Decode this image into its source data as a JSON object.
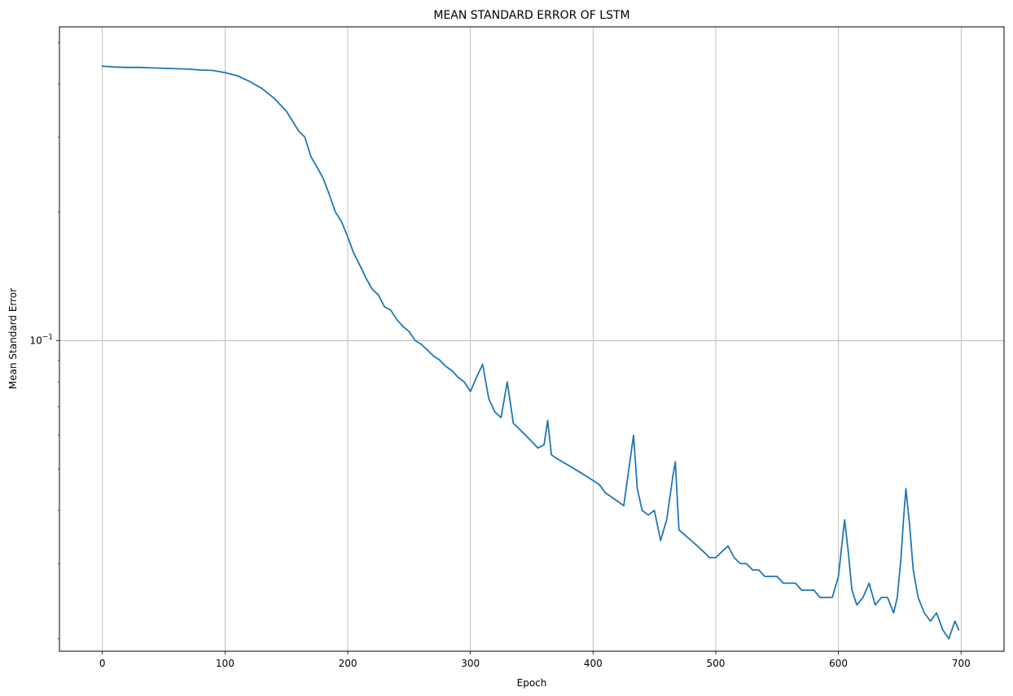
{
  "chart_data": {
    "type": "line",
    "title": "MEAN STANDARD ERROR OF LSTM",
    "xlabel": "Epoch",
    "ylabel": "Mean Standard Error",
    "xscale": "linear",
    "yscale": "log",
    "xlim": [
      -35,
      735
    ],
    "ylim": [
      0.0187,
      0.544
    ],
    "grid": true,
    "legend": "none",
    "line_color": "#1f77b4",
    "x_ticks": [
      "0",
      "100",
      "200",
      "300",
      "400",
      "500",
      "600",
      "700"
    ],
    "y_tick_label": {
      "base": "10",
      "exponent": "−1"
    },
    "series": [
      {
        "x": [
          0,
          10,
          20,
          30,
          40,
          50,
          60,
          70,
          80,
          90,
          100,
          110,
          120,
          130,
          140,
          150,
          160,
          165,
          170,
          175,
          180,
          185,
          190,
          195,
          200,
          205,
          210,
          215,
          220,
          225,
          230,
          235,
          240,
          245,
          250,
          255,
          260,
          265,
          270,
          275,
          280,
          285,
          290,
          295,
          300,
          305,
          310,
          315,
          320,
          325,
          330,
          335,
          340,
          345,
          350,
          355,
          360,
          363,
          366,
          370,
          375,
          380,
          385,
          390,
          395,
          400,
          405,
          410,
          415,
          420,
          425,
          430,
          433,
          436,
          440,
          445,
          450,
          455,
          460,
          465,
          467,
          470,
          475,
          480,
          485,
          490,
          495,
          500,
          505,
          510,
          515,
          520,
          525,
          530,
          535,
          540,
          545,
          550,
          555,
          560,
          565,
          570,
          575,
          580,
          585,
          590,
          595,
          600,
          605,
          608,
          611,
          615,
          620,
          625,
          630,
          635,
          640,
          645,
          648,
          651,
          653,
          655,
          658,
          661,
          665,
          670,
          675,
          680,
          685,
          690,
          695,
          698
        ],
        "y": [
          0.44,
          0.438,
          0.437,
          0.437,
          0.436,
          0.435,
          0.434,
          0.433,
          0.431,
          0.43,
          0.425,
          0.418,
          0.405,
          0.39,
          0.37,
          0.345,
          0.31,
          0.3,
          0.27,
          0.255,
          0.24,
          0.22,
          0.2,
          0.19,
          0.175,
          0.16,
          0.15,
          0.14,
          0.132,
          0.128,
          0.12,
          0.118,
          0.112,
          0.108,
          0.105,
          0.1,
          0.098,
          0.095,
          0.092,
          0.09,
          0.087,
          0.085,
          0.082,
          0.08,
          0.076,
          0.082,
          0.088,
          0.073,
          0.068,
          0.066,
          0.08,
          0.064,
          0.062,
          0.06,
          0.058,
          0.056,
          0.057,
          0.065,
          0.054,
          0.053,
          0.052,
          0.051,
          0.05,
          0.049,
          0.048,
          0.047,
          0.046,
          0.044,
          0.043,
          0.042,
          0.041,
          0.052,
          0.06,
          0.045,
          0.04,
          0.039,
          0.04,
          0.034,
          0.038,
          0.048,
          0.052,
          0.036,
          0.035,
          0.034,
          0.033,
          0.032,
          0.031,
          0.031,
          0.032,
          0.033,
          0.031,
          0.03,
          0.03,
          0.029,
          0.029,
          0.028,
          0.028,
          0.028,
          0.027,
          0.027,
          0.027,
          0.026,
          0.026,
          0.026,
          0.025,
          0.025,
          0.025,
          0.028,
          0.038,
          0.032,
          0.026,
          0.024,
          0.025,
          0.027,
          0.024,
          0.025,
          0.025,
          0.023,
          0.025,
          0.031,
          0.038,
          0.045,
          0.037,
          0.029,
          0.025,
          0.023,
          0.022,
          0.023,
          0.021,
          0.02,
          0.022,
          0.021
        ]
      }
    ]
  }
}
